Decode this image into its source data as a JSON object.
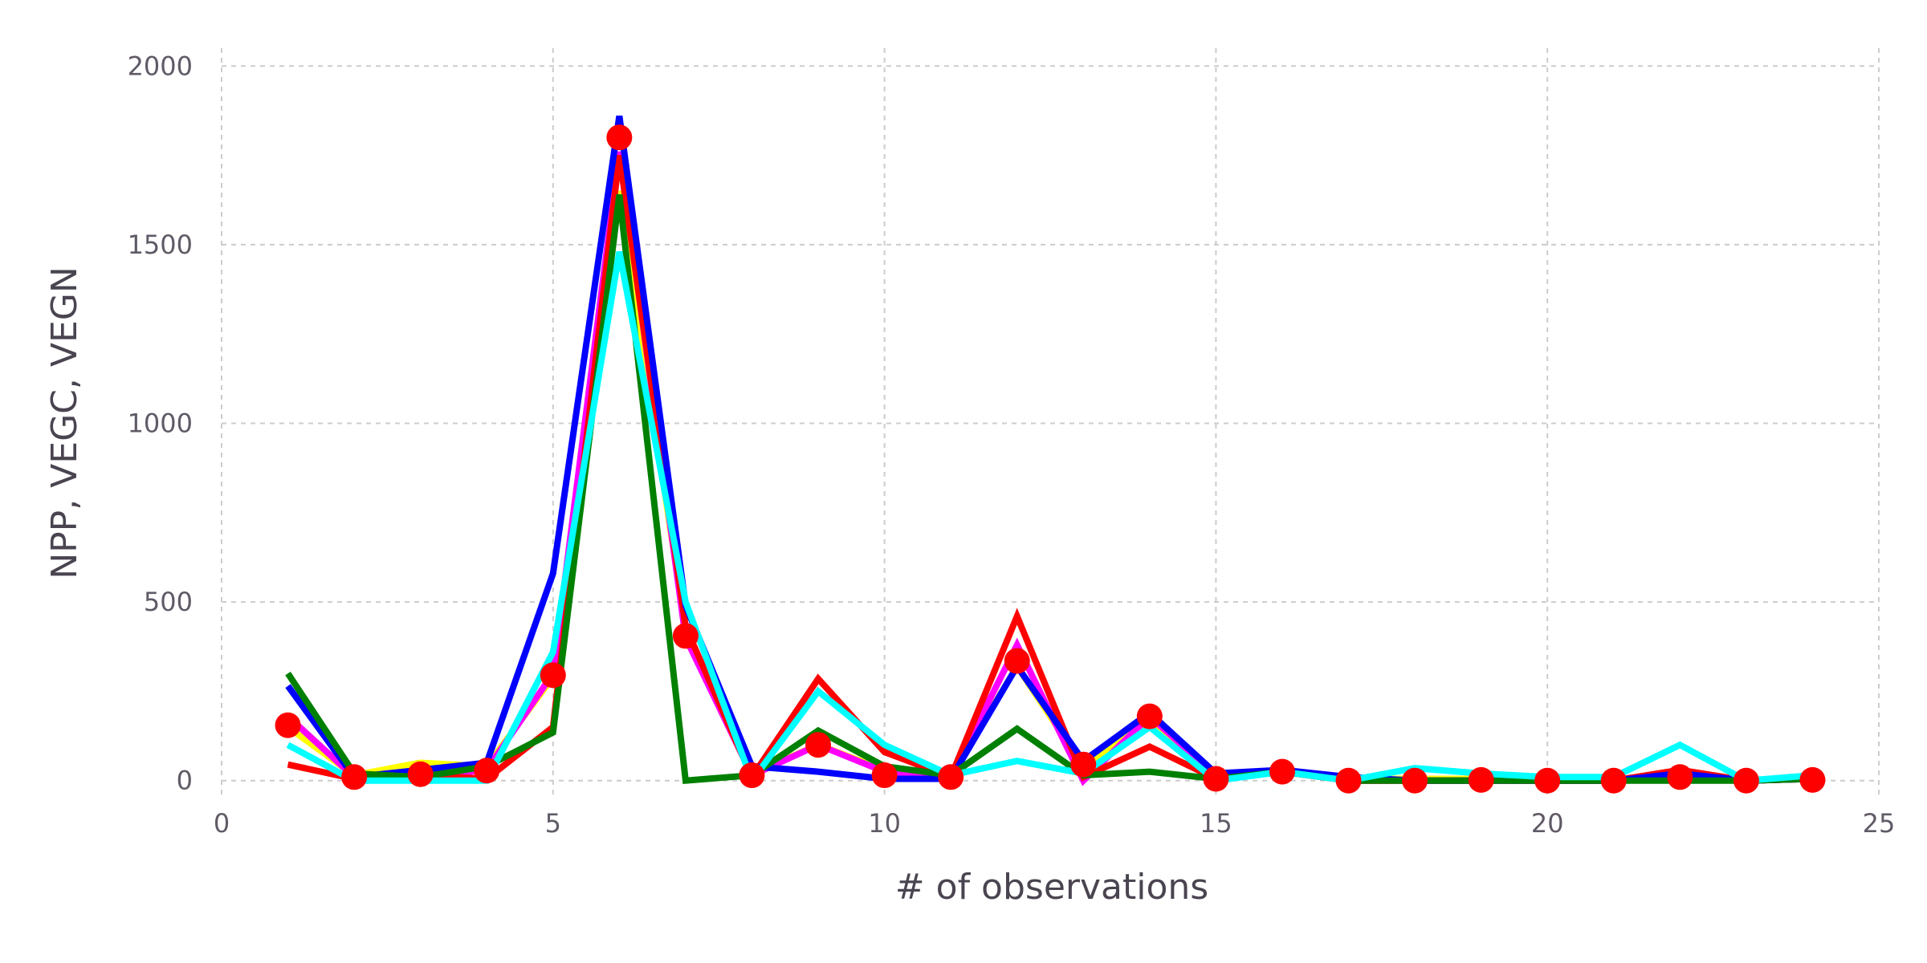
{
  "chart_data": {
    "type": "line",
    "title": "",
    "xlabel": "# of observations",
    "ylabel": "NPP, VEGC, VEGN",
    "xlim": [
      0,
      25
    ],
    "ylim": [
      -50,
      2050
    ],
    "xticks": [
      0,
      5,
      10,
      15,
      20,
      25
    ],
    "yticks": [
      0,
      500,
      1000,
      1500,
      2000
    ],
    "grid": true,
    "legend": "none",
    "x": [
      1,
      2,
      3,
      4,
      5,
      6,
      7,
      8,
      9,
      10,
      11,
      12,
      13,
      14,
      15,
      16,
      17,
      18,
      19,
      20,
      21,
      22,
      23,
      24
    ],
    "series": [
      {
        "color": "#ffff00",
        "values": [
          150,
          15,
          50,
          40,
          290,
          1650,
          420,
          20,
          100,
          30,
          10,
          320,
          40,
          170,
          15,
          25,
          5,
          5,
          5,
          0,
          0,
          10,
          0,
          5
        ]
      },
      {
        "color": "#ff00ff",
        "values": [
          180,
          10,
          10,
          30,
          300,
          1760,
          400,
          15,
          100,
          25,
          10,
          380,
          0,
          180,
          15,
          25,
          0,
          0,
          0,
          0,
          0,
          10,
          0,
          5
        ]
      },
      {
        "color": "#ff0000",
        "values": [
          45,
          5,
          15,
          5,
          150,
          1750,
          430,
          10,
          285,
          80,
          10,
          460,
          10,
          95,
          5,
          25,
          0,
          0,
          0,
          0,
          0,
          30,
          0,
          5
        ]
      },
      {
        "color": "#0000ff",
        "values": [
          265,
          10,
          30,
          50,
          580,
          1860,
          490,
          40,
          25,
          5,
          5,
          320,
          55,
          190,
          20,
          30,
          10,
          0,
          0,
          0,
          0,
          20,
          0,
          5
        ]
      },
      {
        "color": "#008000",
        "values": [
          300,
          20,
          10,
          40,
          135,
          1640,
          0,
          15,
          140,
          40,
          15,
          145,
          15,
          25,
          5,
          25,
          0,
          0,
          0,
          0,
          0,
          0,
          0,
          5
        ]
      },
      {
        "color": "#00ffff",
        "values": [
          100,
          0,
          0,
          0,
          360,
          1480,
          500,
          0,
          250,
          100,
          15,
          55,
          20,
          150,
          0,
          25,
          0,
          35,
          20,
          10,
          10,
          100,
          0,
          15
        ]
      }
    ],
    "observations": {
      "color": "#ff0000",
      "values": [
        155,
        10,
        18,
        28,
        295,
        1800,
        405,
        15,
        100,
        15,
        10,
        335,
        45,
        180,
        5,
        25,
        0,
        0,
        2,
        0,
        0,
        10,
        0,
        2
      ]
    }
  }
}
